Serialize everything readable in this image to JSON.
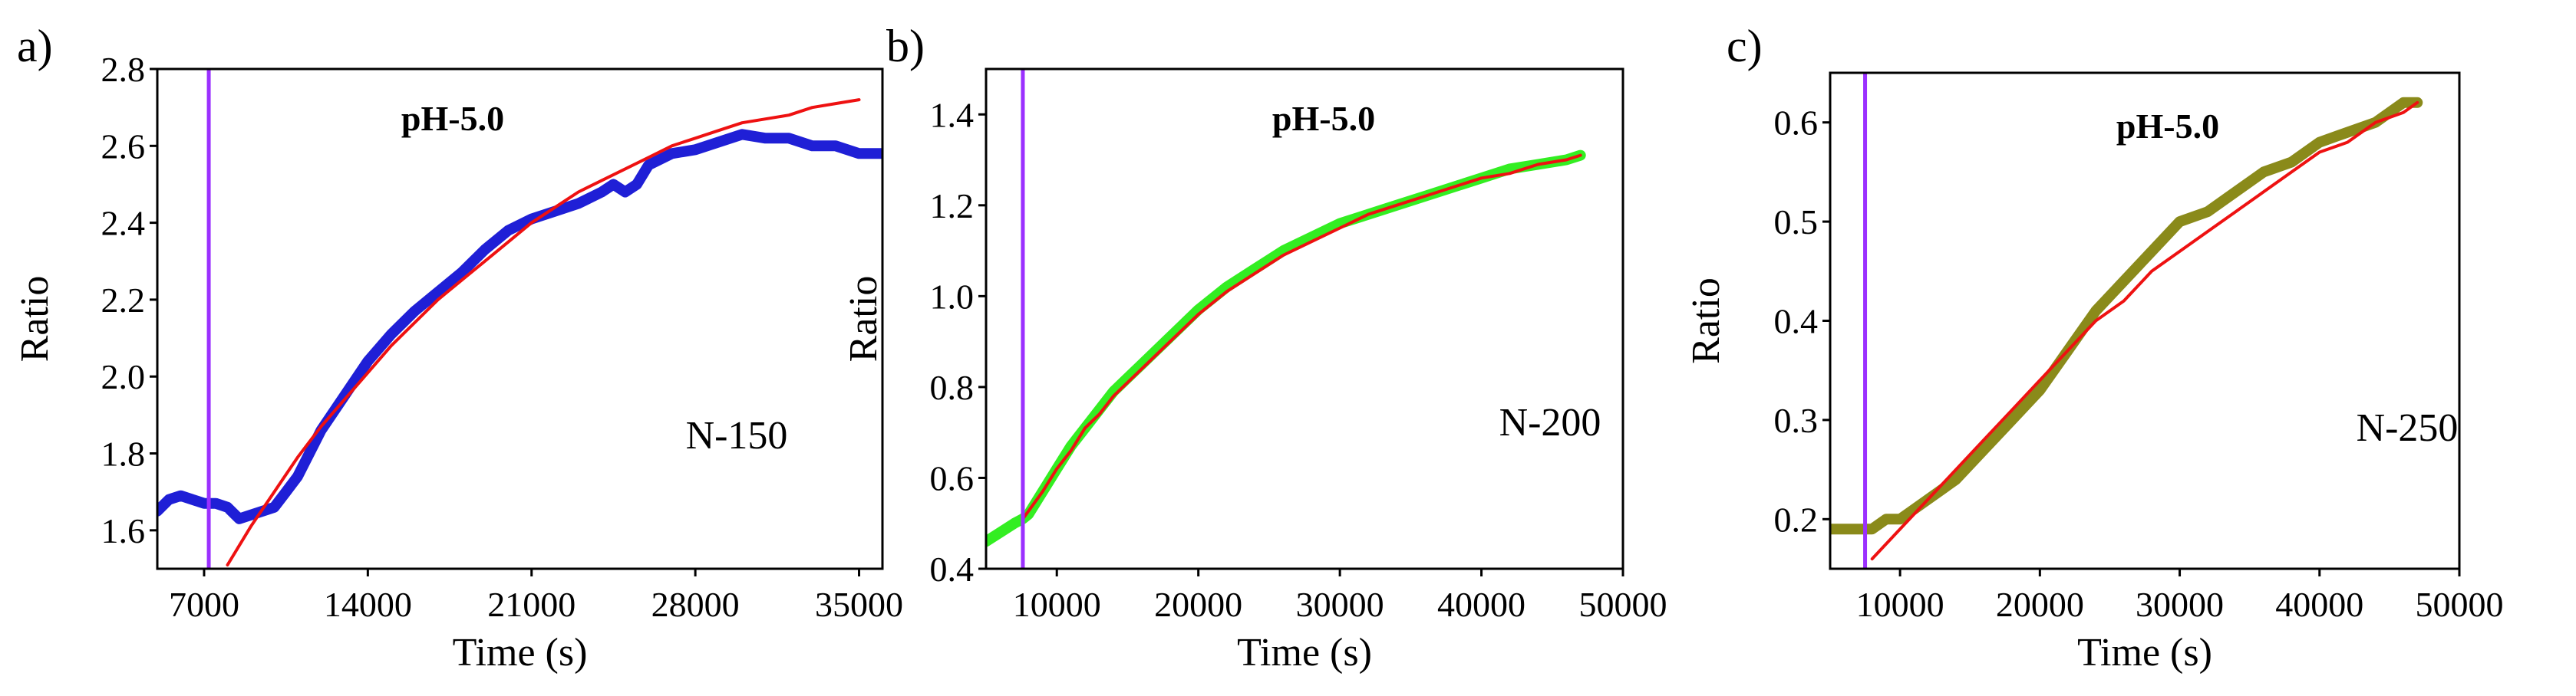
{
  "figure": {
    "description_labels": [
      "a)",
      "b)",
      "c)"
    ]
  },
  "chart_data": [
    {
      "type": "line",
      "panel_label": "a)",
      "annotation": "pH-5.0",
      "sample_label": "N-150",
      "xlabel": "Time (s)",
      "ylabel": "Ratio",
      "xlim": [
        5000,
        36000
      ],
      "ylim": [
        1.5,
        2.8
      ],
      "xticks": [
        7000,
        14000,
        21000,
        28000,
        35000
      ],
      "xtick_labels": [
        "7000",
        "14000",
        "21000",
        "28000",
        "35000"
      ],
      "yticks": [
        1.6,
        1.8,
        2.0,
        2.2,
        2.4,
        2.6,
        2.8
      ],
      "ytick_labels": [
        "1.6",
        "1.8",
        "2.0",
        "2.2",
        "2.4",
        "2.6",
        "2.8"
      ],
      "marker_x": 7200,
      "marker_color": "#9b30ff",
      "series": [
        {
          "name": "data",
          "color": "#1f1fd6",
          "x": [
            5000,
            5500,
            6000,
            6500,
            7000,
            7500,
            8000,
            8500,
            9000,
            9500,
            10000,
            10500,
            11000,
            12000,
            13000,
            14000,
            15000,
            16000,
            17000,
            18000,
            19000,
            20000,
            21000,
            22000,
            23000,
            24000,
            24500,
            25000,
            25500,
            26000,
            27000,
            28000,
            29000,
            30000,
            31000,
            32000,
            33000,
            34000,
            35000,
            36000
          ],
          "y": [
            1.65,
            1.68,
            1.69,
            1.68,
            1.67,
            1.67,
            1.66,
            1.63,
            1.64,
            1.65,
            1.66,
            1.7,
            1.74,
            1.86,
            1.95,
            2.04,
            2.11,
            2.17,
            2.22,
            2.27,
            2.33,
            2.38,
            2.41,
            2.43,
            2.45,
            2.48,
            2.5,
            2.48,
            2.5,
            2.55,
            2.58,
            2.59,
            2.61,
            2.63,
            2.62,
            2.62,
            2.6,
            2.6,
            2.58,
            2.58
          ]
        },
        {
          "name": "fit",
          "color": "#ee1111",
          "x": [
            8000,
            9000,
            10000,
            11000,
            12000,
            13000,
            14000,
            15000,
            16000,
            17000,
            18000,
            19000,
            20000,
            21000,
            22000,
            23000,
            24000,
            25000,
            26000,
            27000,
            28000,
            29000,
            30000,
            31000,
            32000,
            33000,
            34000,
            35000
          ],
          "y": [
            1.51,
            1.61,
            1.7,
            1.79,
            1.87,
            1.94,
            2.01,
            2.08,
            2.14,
            2.2,
            2.25,
            2.3,
            2.35,
            2.4,
            2.44,
            2.48,
            2.51,
            2.54,
            2.57,
            2.6,
            2.62,
            2.64,
            2.66,
            2.67,
            2.68,
            2.7,
            2.71,
            2.72
          ]
        }
      ]
    },
    {
      "type": "line",
      "panel_label": "b)",
      "annotation": "pH-5.0",
      "sample_label": "N-200",
      "xlabel": "Time (s)",
      "ylabel": "Ratio",
      "xlim": [
        5000,
        50000
      ],
      "ylim": [
        0.4,
        1.5
      ],
      "xticks": [
        10000,
        20000,
        30000,
        40000,
        50000
      ],
      "xtick_labels": [
        "10000",
        "20000",
        "30000",
        "40000",
        "50000"
      ],
      "yticks": [
        0.4,
        0.6,
        0.8,
        1.0,
        1.2,
        1.4
      ],
      "ytick_labels": [
        "0.4",
        "0.6",
        "0.8",
        "1.0",
        "1.2",
        "1.4"
      ],
      "marker_x": 7600,
      "marker_color": "#9b30ff",
      "series": [
        {
          "name": "data",
          "color": "#33ee22",
          "x": [
            5000,
            6000,
            7000,
            7600,
            8000,
            9000,
            10000,
            11000,
            12000,
            13000,
            14000,
            15000,
            16000,
            18000,
            20000,
            22000,
            24000,
            26000,
            28000,
            30000,
            32000,
            34000,
            36000,
            38000,
            40000,
            42000,
            44000,
            46000,
            47000
          ],
          "y": [
            0.46,
            0.48,
            0.5,
            0.51,
            0.52,
            0.57,
            0.62,
            0.67,
            0.71,
            0.75,
            0.79,
            0.82,
            0.85,
            0.91,
            0.97,
            1.02,
            1.06,
            1.1,
            1.13,
            1.16,
            1.18,
            1.2,
            1.22,
            1.24,
            1.26,
            1.28,
            1.29,
            1.3,
            1.31
          ]
        },
        {
          "name": "fit",
          "color": "#ee1111",
          "x": [
            7600,
            9000,
            10000,
            11000,
            12000,
            13000,
            14000,
            15000,
            16000,
            18000,
            20000,
            22000,
            24000,
            26000,
            28000,
            30000,
            32000,
            34000,
            36000,
            38000,
            40000,
            42000,
            44000,
            46000,
            47000
          ],
          "y": [
            0.51,
            0.57,
            0.62,
            0.66,
            0.71,
            0.74,
            0.78,
            0.81,
            0.84,
            0.9,
            0.96,
            1.01,
            1.05,
            1.09,
            1.12,
            1.15,
            1.18,
            1.2,
            1.22,
            1.24,
            1.26,
            1.27,
            1.29,
            1.3,
            1.31
          ]
        }
      ]
    },
    {
      "type": "line",
      "panel_label": "c)",
      "annotation": "pH-5.0",
      "sample_label": "N-250",
      "xlabel": "Time (s)",
      "ylabel": "Ratio",
      "xlim": [
        5000,
        50000
      ],
      "ylim": [
        0.15,
        0.65
      ],
      "xticks": [
        10000,
        20000,
        30000,
        40000,
        50000
      ],
      "xtick_labels": [
        "10000",
        "20000",
        "30000",
        "40000",
        "50000"
      ],
      "yticks": [
        0.2,
        0.3,
        0.4,
        0.5,
        0.6
      ],
      "ytick_labels": [
        "0.2",
        "0.3",
        "0.4",
        "0.5",
        "0.6"
      ],
      "marker_x": 7500,
      "marker_color": "#9b30ff",
      "series": [
        {
          "name": "data",
          "color": "#8a8a1a",
          "x": [
            5000,
            6000,
            7000,
            8000,
            9000,
            10000,
            11000,
            12000,
            13000,
            14000,
            16000,
            18000,
            20000,
            22000,
            24000,
            26000,
            28000,
            30000,
            32000,
            34000,
            36000,
            38000,
            40000,
            42000,
            44000,
            46000,
            47000
          ],
          "y": [
            0.19,
            0.19,
            0.19,
            0.19,
            0.2,
            0.2,
            0.21,
            0.22,
            0.23,
            0.24,
            0.27,
            0.3,
            0.33,
            0.37,
            0.41,
            0.44,
            0.47,
            0.5,
            0.51,
            0.53,
            0.55,
            0.56,
            0.58,
            0.59,
            0.6,
            0.62,
            0.62
          ]
        },
        {
          "name": "fit",
          "color": "#ee1111",
          "x": [
            8000,
            10000,
            12000,
            14000,
            16000,
            18000,
            20000,
            22000,
            24000,
            26000,
            28000,
            30000,
            32000,
            34000,
            36000,
            38000,
            40000,
            42000,
            44000,
            46000,
            47000
          ],
          "y": [
            0.16,
            0.19,
            0.22,
            0.25,
            0.28,
            0.31,
            0.34,
            0.37,
            0.4,
            0.42,
            0.45,
            0.47,
            0.49,
            0.51,
            0.53,
            0.55,
            0.57,
            0.58,
            0.6,
            0.61,
            0.62
          ]
        }
      ]
    }
  ]
}
